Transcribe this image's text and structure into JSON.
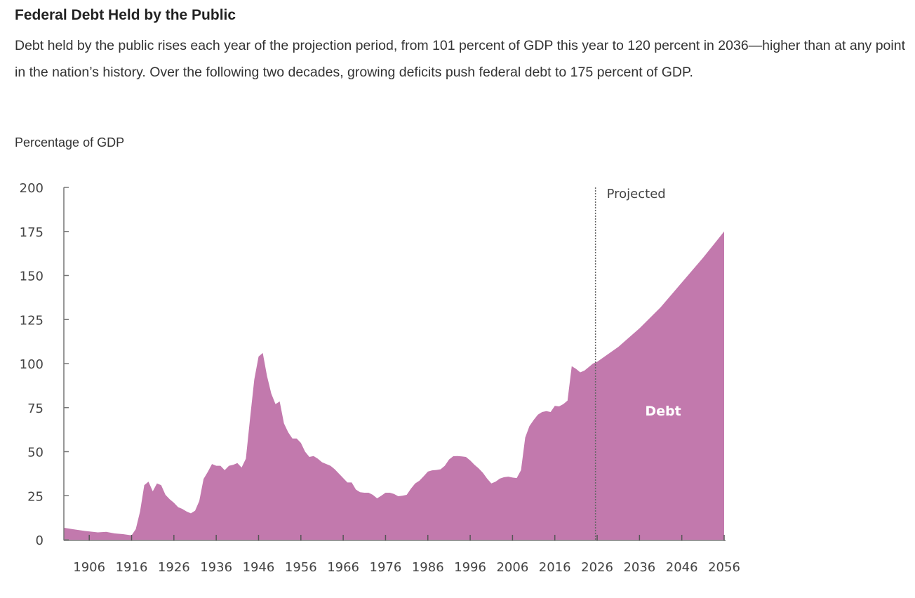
{
  "header": {
    "title": "Federal Debt Held by the Public",
    "description": "Debt held by the public rises each year of the projection period, from 101 percent of GDP this year to 120 percent in 2036—higher than at any point in the nation’s history. Over the following two decades, growing deficits push federal debt to 175 percent of GDP."
  },
  "chart_data": {
    "type": "area",
    "title": "",
    "xlabel": "",
    "ylabel": "Percentage of GDP",
    "xlim": [
      1900,
      2056
    ],
    "ylim": [
      0,
      200
    ],
    "yticks": [
      0,
      25,
      50,
      75,
      100,
      125,
      150,
      175,
      200
    ],
    "xticks": [
      1906,
      1916,
      1926,
      1936,
      1946,
      1956,
      1966,
      1976,
      1986,
      1996,
      2006,
      2016,
      2026,
      2036,
      2046,
      2056
    ],
    "grid": false,
    "fill_color": "#c279ad",
    "projection_start": 2025.6,
    "projection_label": "Projected",
    "series_label": "Debt",
    "series": [
      {
        "name": "Debt",
        "x": [
          1900,
          1902,
          1905,
          1908,
          1910,
          1912,
          1914,
          1916,
          1917,
          1918,
          1919,
          1920,
          1921,
          1922,
          1923,
          1924,
          1925,
          1926,
          1927,
          1928,
          1929,
          1930,
          1931,
          1932,
          1933,
          1934,
          1935,
          1936,
          1937,
          1938,
          1939,
          1940,
          1941,
          1942,
          1943,
          1944,
          1945,
          1946,
          1947,
          1948,
          1949,
          1950,
          1951,
          1952,
          1953,
          1954,
          1955,
          1956,
          1957,
          1958,
          1959,
          1960,
          1961,
          1962,
          1963,
          1964,
          1965,
          1966,
          1967,
          1968,
          1969,
          1970,
          1971,
          1972,
          1973,
          1974,
          1975,
          1976,
          1977,
          1978,
          1979,
          1980,
          1981,
          1982,
          1983,
          1984,
          1985,
          1986,
          1987,
          1988,
          1989,
          1990,
          1991,
          1992,
          1993,
          1994,
          1995,
          1996,
          1997,
          1998,
          1999,
          2000,
          2001,
          2002,
          2003,
          2004,
          2005,
          2006,
          2007,
          2008,
          2009,
          2010,
          2011,
          2012,
          2013,
          2014,
          2015,
          2016,
          2017,
          2018,
          2019,
          2020,
          2021,
          2022,
          2023,
          2024,
          2025,
          2026,
          2031,
          2036,
          2041,
          2046,
          2051,
          2056
        ],
        "values": [
          6.8,
          6,
          5,
          4.2,
          4.5,
          3.6,
          3.2,
          2.5,
          6,
          16,
          31,
          33,
          27.5,
          32,
          31,
          25.5,
          23,
          21,
          18.5,
          17.5,
          16,
          15,
          16.5,
          22,
          34.5,
          38.5,
          43,
          42,
          42,
          39.5,
          42,
          42.5,
          43.5,
          41,
          46,
          69,
          91,
          104,
          106,
          93,
          83,
          77,
          78.5,
          66,
          61,
          57.5,
          57.5,
          55,
          50,
          47,
          47.5,
          46,
          44,
          43,
          42,
          40,
          37.5,
          35,
          32.5,
          32.5,
          28.5,
          27,
          26.7,
          26.7,
          25.5,
          23.5,
          25,
          26.7,
          26.7,
          26,
          24.7,
          25,
          25.5,
          29,
          32,
          33.5,
          36,
          38.7,
          39.4,
          39.6,
          40,
          42,
          45.5,
          47.4,
          47.5,
          47.3,
          47,
          45,
          42.6,
          40.5,
          38,
          34.7,
          32,
          33,
          34.7,
          35.5,
          35.8,
          35.3,
          35,
          39.5,
          58,
          64.5,
          68,
          71,
          72.5,
          73,
          72.5,
          76,
          75.7,
          77,
          79,
          98.5,
          97,
          95,
          96,
          98,
          100,
          101,
          109.5,
          120,
          132,
          146,
          160,
          175
        ]
      }
    ]
  }
}
